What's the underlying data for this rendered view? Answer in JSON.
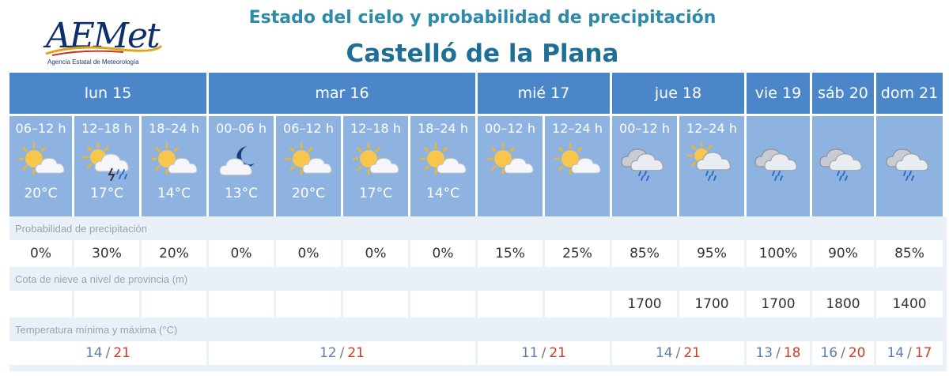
{
  "header": {
    "logo_text": "AEMet",
    "logo_tagline": "Agencia Estatal de Meteorología",
    "title": "Estado del cielo y probabilidad de precipitación",
    "city": "Castelló de la Plana"
  },
  "days": [
    {
      "label": "lun 15"
    },
    {
      "label": "mar 16"
    },
    {
      "label": "mié 17"
    },
    {
      "label": "jue 18"
    },
    {
      "label": "vie 19"
    },
    {
      "label": "sáb 20"
    },
    {
      "label": "dom 21"
    }
  ],
  "periods": [
    {
      "label": "06–12 h",
      "icon": "sun-cloud-icon",
      "temp": "20°C"
    },
    {
      "label": "12–18 h",
      "icon": "sun-cloud-storm-icon",
      "temp": "17°C"
    },
    {
      "label": "18–24 h",
      "icon": "sun-cloud-icon",
      "temp": "14°C"
    },
    {
      "label": "00–06 h",
      "icon": "moon-cloud-icon",
      "temp": "13°C"
    },
    {
      "label": "06–12 h",
      "icon": "sun-cloud-icon",
      "temp": "20°C"
    },
    {
      "label": "12–18 h",
      "icon": "sun-cloud-icon",
      "temp": "17°C"
    },
    {
      "label": "18–24 h",
      "icon": "sun-cloud-icon",
      "temp": "14°C"
    },
    {
      "label": "00–12 h",
      "icon": "sun-cloud-icon",
      "temp": ""
    },
    {
      "label": "12–24 h",
      "icon": "sun-cloud-icon",
      "temp": ""
    },
    {
      "label": "00–12 h",
      "icon": "cloud-rain-icon",
      "temp": ""
    },
    {
      "label": "12–24 h",
      "icon": "sun-cloud-rain-icon",
      "temp": ""
    },
    {
      "label": "",
      "icon": "cloud-rain-icon",
      "temp": ""
    },
    {
      "label": "",
      "icon": "cloud-rain-icon",
      "temp": ""
    },
    {
      "label": "",
      "icon": "cloud-rain-icon",
      "temp": ""
    }
  ],
  "precipitation": {
    "label": "Probabilidad de precipitación",
    "values": [
      "0%",
      "30%",
      "20%",
      "0%",
      "0%",
      "0%",
      "0%",
      "15%",
      "25%",
      "85%",
      "95%",
      "100%",
      "90%",
      "85%"
    ]
  },
  "snow": {
    "label": "Cota de nieve a nivel de provincia (m)",
    "values": [
      "",
      "",
      "",
      "",
      "",
      "",
      "",
      "",
      "",
      "1700",
      "1700",
      "1700",
      "1800",
      "1400"
    ]
  },
  "temperature": {
    "label": "Temperatura mínima y máxima (°C)",
    "values": [
      {
        "min": "14",
        "max": "21"
      },
      {
        "min": "12",
        "max": "21"
      },
      {
        "min": "11",
        "max": "21"
      },
      {
        "min": "14",
        "max": "21"
      },
      {
        "min": "13",
        "max": "18"
      },
      {
        "min": "16",
        "max": "20"
      },
      {
        "min": "14",
        "max": "17"
      }
    ]
  },
  "colors": {
    "day_header": "#4b86c9",
    "period_bg": "#8fb3e0",
    "title": "#2d8aa8",
    "city": "#1e6e96",
    "tmax": "#d23a2a",
    "tmin": "#5b7fb0"
  }
}
